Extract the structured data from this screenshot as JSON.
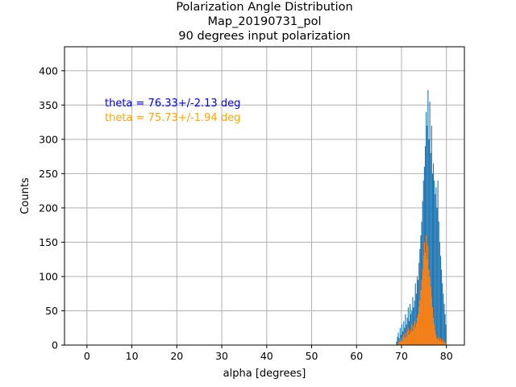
{
  "chart_data": {
    "type": "bar",
    "title_lines": [
      "Polarization Angle Distribution",
      "Map_20190731_pol",
      "90 degrees input polarization"
    ],
    "xlabel": "alpha [degrees]",
    "ylabel": "Counts",
    "xlim": [
      -5,
      84
    ],
    "ylim": [
      0,
      435
    ],
    "x_ticks": [
      0,
      10,
      20,
      30,
      40,
      50,
      60,
      70,
      80
    ],
    "y_ticks": [
      0,
      50,
      100,
      150,
      200,
      250,
      300,
      350,
      400
    ],
    "grid": true,
    "bin_width": 0.2,
    "annotations": [
      {
        "text": "theta = 76.33+/-2.13 deg",
        "color": "#0000ff"
      },
      {
        "text": "theta = 75.73+/-1.94 deg",
        "color": "#ffa500"
      }
    ],
    "series": [
      {
        "color": "#1f77b4",
        "x": [
          68.8,
          69.0,
          69.2,
          69.4,
          69.6,
          69.8,
          70.0,
          70.2,
          70.4,
          70.6,
          70.8,
          71.0,
          71.2,
          71.4,
          71.6,
          71.8,
          72.0,
          72.2,
          72.4,
          72.6,
          72.8,
          73.0,
          73.2,
          73.4,
          73.6,
          73.8,
          74.0,
          74.2,
          74.4,
          74.6,
          74.8,
          75.0,
          75.2,
          75.4,
          75.6,
          75.8,
          76.0,
          76.2,
          76.4,
          76.6,
          76.8,
          77.0,
          77.2,
          77.4,
          77.6,
          77.8,
          78.0,
          78.2,
          78.4,
          78.6,
          78.8,
          79.0,
          79.2,
          79.4,
          79.6,
          79.8
        ],
        "values": [
          5,
          12,
          18,
          10,
          25,
          15,
          30,
          20,
          35,
          25,
          45,
          30,
          40,
          55,
          35,
          60,
          45,
          50,
          70,
          55,
          65,
          90,
          75,
          100,
          95,
          120,
          140,
          160,
          180,
          210,
          240,
          260,
          290,
          340,
          320,
          372,
          300,
          355,
          280,
          320,
          250,
          265,
          240,
          220,
          230,
          200,
          240,
          180,
          150,
          130,
          110,
          90,
          75,
          60,
          45,
          30
        ]
      },
      {
        "color": "#ff7f0e",
        "x": [
          69.2,
          69.4,
          69.6,
          69.8,
          70.0,
          70.2,
          70.4,
          70.6,
          70.8,
          71.0,
          71.2,
          71.4,
          71.6,
          71.8,
          72.0,
          72.2,
          72.4,
          72.6,
          72.8,
          73.0,
          73.2,
          73.4,
          73.6,
          73.8,
          74.0,
          74.2,
          74.4,
          74.6,
          74.8,
          75.0,
          75.2,
          75.4,
          75.6,
          75.8,
          76.0,
          76.2,
          76.4,
          76.6,
          76.8,
          77.0,
          77.2,
          77.4,
          77.6,
          77.8,
          78.0,
          78.2,
          78.4,
          78.6,
          78.8,
          79.0,
          79.2,
          79.4,
          79.6
        ],
        "values": [
          3,
          8,
          5,
          10,
          6,
          12,
          15,
          10,
          18,
          12,
          20,
          25,
          15,
          22,
          18,
          30,
          20,
          28,
          35,
          25,
          32,
          40,
          45,
          55,
          65,
          80,
          95,
          110,
          130,
          150,
          135,
          160,
          125,
          145,
          110,
          100,
          85,
          70,
          55,
          40,
          30,
          22,
          15,
          10,
          8,
          12,
          6,
          10,
          5,
          8,
          4,
          6,
          3
        ]
      }
    ]
  }
}
